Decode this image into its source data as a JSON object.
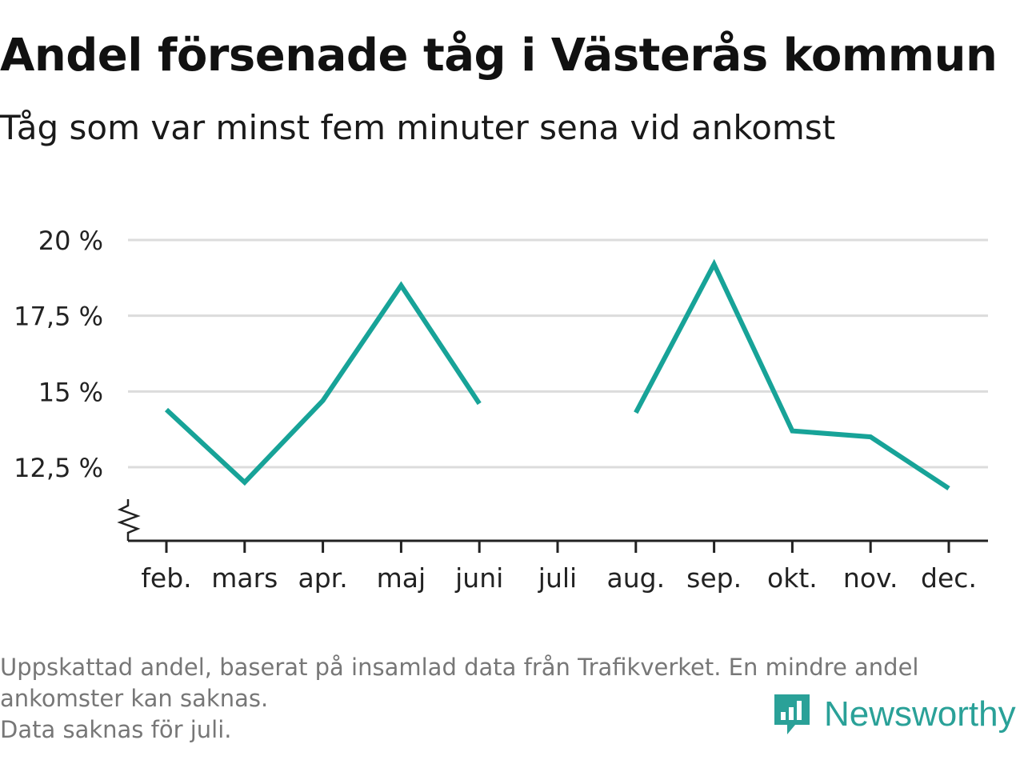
{
  "header": {
    "title": "Andel försenade tåg i Västerås kommun",
    "subtitle": "Tåg som var minst fem minuter sena vid ankomst"
  },
  "footer": {
    "notes": [
      "Uppskattad andel, baserat på insamlad data från Trafikverket. En mindre andel",
      "ankomster kan saknas.",
      "Data saknas för juli."
    ],
    "brand_name": "Newsworthy",
    "brand_icon": "bar-chart-speech-bubble-icon"
  },
  "colors": {
    "line": "#17a398",
    "grid": "#dcdcdc",
    "axis": "#222222",
    "brand": "#2aa198"
  },
  "chart_data": {
    "type": "line",
    "categories": [
      "feb.",
      "mars",
      "apr.",
      "maj",
      "juni",
      "juli",
      "aug.",
      "sep.",
      "okt.",
      "nov.",
      "dec."
    ],
    "series": [
      {
        "values": [
          14.4,
          12.0,
          14.7,
          18.5,
          14.6,
          null,
          14.3,
          19.2,
          13.7,
          13.5,
          11.8
        ]
      }
    ],
    "yticks": [
      12.5,
      15,
      17.5,
      20
    ],
    "ytick_labels": [
      "12,5 %",
      "15 %",
      "17,5 %",
      "20 %"
    ],
    "ylim": [
      10.5,
      20
    ],
    "y_axis_break": true,
    "grid": true,
    "legend": false
  }
}
